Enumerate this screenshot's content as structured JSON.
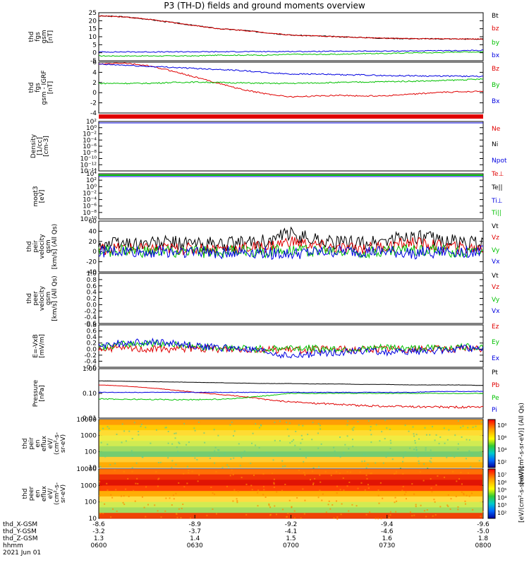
{
  "title": "P3 (TH-D) fields and ground moments overview",
  "colors": {
    "black": "#000000",
    "red": "#e00000",
    "green": "#00c000",
    "blue": "#0000e0"
  },
  "colorbar_labels": {
    "ion": "[eV/(cm²-s-sr-eV)] (All Qs)",
    "electron": "[eV/(cm²-s-sr-eV)]"
  },
  "chart_data": [
    {
      "type": "line",
      "ylabel": [
        "thd",
        "fgs",
        "gsm",
        "[nT]"
      ],
      "ylim": [
        -5,
        25
      ],
      "yticks": [
        "25",
        "20",
        "15",
        "10",
        "5",
        "0",
        "-5"
      ],
      "series": [
        {
          "name": "Bt",
          "color": "black",
          "values": [
            23,
            22.5,
            21,
            19,
            17,
            15,
            14,
            12.5,
            11,
            10.5,
            10,
            9.5,
            9,
            8.8,
            8.7,
            8.6,
            8.5
          ]
        },
        {
          "name": "bz",
          "color": "red",
          "values": [
            23,
            22.5,
            21,
            19,
            17,
            15,
            14,
            12.5,
            11,
            10.5,
            10,
            9.5,
            9,
            8.8,
            8.7,
            8.6,
            8.5
          ]
        },
        {
          "name": "by",
          "color": "green",
          "values": [
            -2,
            -2,
            -2,
            -2,
            -2,
            -1.5,
            -1.5,
            -1.5,
            -1,
            -1,
            -1,
            -0.5,
            -0.5,
            0,
            0,
            0.5,
            0.5
          ]
        },
        {
          "name": "bx",
          "color": "blue",
          "values": [
            0.5,
            0.5,
            0.5,
            0.5,
            0.6,
            0.6,
            0.7,
            0.7,
            0.8,
            0.8,
            0.9,
            1,
            1,
            1.1,
            1.2,
            1.3,
            1.5
          ]
        }
      ]
    },
    {
      "type": "line",
      "ylabel": [
        "thd",
        "fgs",
        "gsm - IGRF",
        "[nT]"
      ],
      "ylim": [
        -6,
        6
      ],
      "yticks": [
        "6",
        "4",
        "2",
        "0",
        "-2",
        "-4"
      ],
      "series": [
        {
          "name": "Bz",
          "color": "red",
          "values": [
            5.5,
            5.8,
            5.2,
            4,
            2.5,
            1,
            -0.5,
            -1.5,
            -2.2,
            -2,
            -1.8,
            -2,
            -1.9,
            -1.6,
            -1.2,
            -1,
            -0.8
          ]
        },
        {
          "name": "By",
          "color": "green",
          "values": [
            1,
            1,
            1,
            1.2,
            1.3,
            1.2,
            1.1,
            1,
            1,
            1.1,
            1.2,
            1.3,
            1.4,
            1.5,
            1.6,
            1.8,
            2
          ]
        },
        {
          "name": "Bx",
          "color": "blue",
          "values": [
            5.5,
            5.3,
            5,
            4.8,
            4.5,
            4.3,
            4,
            3.5,
            3.2,
            3.2,
            3,
            3,
            2.8,
            2.8,
            2.7,
            2.7,
            2.6
          ]
        }
      ]
    },
    {
      "type": "line",
      "ylabel": [
        "Density",
        "[1/cc]",
        "[cm-3]"
      ],
      "ylim": [
        -14,
        2
      ],
      "yticks": [
        "10²",
        "10⁰",
        "10⁻²",
        "10⁻⁴",
        "10⁻⁶",
        "10⁻⁸",
        "10⁻¹⁰",
        "10⁻¹²",
        "10⁻¹⁴"
      ],
      "series": [
        {
          "name": "Ne",
          "color": "red",
          "values": []
        },
        {
          "name": "Ni",
          "color": "black",
          "values": []
        },
        {
          "name": "Npot",
          "color": "blue",
          "values": []
        }
      ]
    },
    {
      "type": "line",
      "ylabel": [
        "moqt3",
        "[eV]"
      ],
      "ylim": [
        -10,
        4
      ],
      "yticks": [
        "10⁴",
        "10²",
        "10⁰",
        "10⁻²",
        "10⁻⁴",
        "10⁻⁶",
        "10⁻⁸",
        "10⁻¹⁰"
      ],
      "series": [
        {
          "name": "Te⊥",
          "color": "red",
          "values": []
        },
        {
          "name": "Te||",
          "color": "black",
          "values": []
        },
        {
          "name": "Ti⊥",
          "color": "blue",
          "values": []
        },
        {
          "name": "Ti||",
          "color": "green",
          "values": []
        }
      ]
    },
    {
      "type": "line",
      "ylabel": [
        "thd",
        "peir",
        "velocity",
        "gsm",
        "[km/s] (All Qs)"
      ],
      "ylim": [
        -40,
        60
      ],
      "yticks": [
        "60",
        "40",
        "20",
        "0",
        "-20",
        "-40"
      ],
      "series": [
        {
          "name": "Vt",
          "color": "black",
          "values": [
            15,
            17,
            16,
            18,
            15,
            14,
            16,
            20,
            35,
            25,
            17,
            16,
            22,
            30,
            25,
            18,
            16
          ]
        },
        {
          "name": "Vz",
          "color": "red",
          "values": [
            5,
            6,
            5,
            6,
            5,
            6,
            7,
            10,
            20,
            12,
            6,
            7,
            10,
            18,
            12,
            7,
            6
          ]
        },
        {
          "name": "Vy",
          "color": "green",
          "values": [
            0,
            2,
            -2,
            1,
            -1,
            0,
            2,
            0,
            5,
            2,
            0,
            -1,
            1,
            4,
            2,
            0,
            1
          ]
        },
        {
          "name": "Vx",
          "color": "blue",
          "values": [
            0,
            0,
            -1,
            0,
            0,
            -2,
            0,
            -3,
            -5,
            -2,
            0,
            0,
            -1,
            -3,
            -1,
            0,
            0
          ]
        }
      ]
    },
    {
      "type": "line",
      "ylabel": [
        "thd",
        "peer",
        "velocity",
        "gsm",
        "[km/s] (All Qs)"
      ],
      "ylim": [
        -0.6,
        1.0
      ],
      "yticks": [
        "1.0",
        "0.8",
        "0.6",
        "0.4",
        "0.2",
        "0.0",
        "-0.2",
        "-0.4",
        "-0.6"
      ],
      "series": [
        {
          "name": "Vt",
          "color": "black",
          "values": []
        },
        {
          "name": "Vz",
          "color": "red",
          "values": []
        },
        {
          "name": "Vy",
          "color": "green",
          "values": []
        },
        {
          "name": "Vx",
          "color": "blue",
          "values": []
        }
      ]
    },
    {
      "type": "line",
      "ylabel": [
        "E=-VxB",
        "[mV/m]"
      ],
      "ylim": [
        -0.6,
        0.8
      ],
      "yticks": [
        "0.8",
        "0.6",
        "0.4",
        "0.2",
        "0.0",
        "-0.2",
        "-0.4",
        "-0.6"
      ],
      "series": [
        {
          "name": "Ez",
          "color": "red",
          "values": [
            0,
            0.02,
            0.01,
            0,
            0.01,
            0,
            0,
            -0.02,
            -0.03,
            -0.02,
            0,
            0,
            0.01,
            0,
            0,
            0.01,
            0
          ]
        },
        {
          "name": "Ey",
          "color": "green",
          "values": [
            0.05,
            0.15,
            0.2,
            0.18,
            0.1,
            0.05,
            0.02,
            0,
            0.05,
            0.02,
            0,
            0,
            0.05,
            0.02,
            0.03,
            0.06,
            0.08
          ]
        },
        {
          "name": "Ex",
          "color": "blue",
          "values": [
            0.1,
            0.2,
            0.25,
            0.2,
            0.1,
            0.05,
            0,
            -0.1,
            -0.25,
            -0.15,
            -0.1,
            -0.05,
            -0.1,
            -0.08,
            -0.05,
            0,
            0.05
          ]
        }
      ]
    },
    {
      "type": "line",
      "scale": "log",
      "ylabel": [
        "Pressure",
        "[nPa]"
      ],
      "ylim": [
        0.01,
        1
      ],
      "yticks": [
        "1.00",
        "0.10",
        "0.01"
      ],
      "series": [
        {
          "name": "Pt",
          "color": "black",
          "values": [
            0.32,
            0.31,
            0.3,
            0.29,
            0.28,
            0.27,
            0.26,
            0.25,
            0.25,
            0.24,
            0.24,
            0.23,
            0.23,
            0.22,
            0.22,
            0.22,
            0.21
          ]
        },
        {
          "name": "Pb",
          "color": "red",
          "values": [
            0.22,
            0.2,
            0.17,
            0.14,
            0.11,
            0.09,
            0.075,
            0.055,
            0.045,
            0.04,
            0.036,
            0.032,
            0.03,
            0.029,
            0.028,
            0.028,
            0.027
          ]
        },
        {
          "name": "Pe",
          "color": "green",
          "values": [
            0.06,
            0.058,
            0.057,
            0.056,
            0.056,
            0.058,
            0.065,
            0.08,
            0.1,
            0.1,
            0.1,
            0.1,
            0.1,
            0.1,
            0.1,
            0.1,
            0.1
          ]
        },
        {
          "name": "Pi",
          "color": "blue",
          "values": [
            0.11,
            0.11,
            0.11,
            0.11,
            0.11,
            0.11,
            0.11,
            0.11,
            0.11,
            0.11,
            0.11,
            0.11,
            0.11,
            0.11,
            0.12,
            0.12,
            0.12
          ]
        }
      ]
    },
    {
      "type": "heatmap",
      "ylabel": [
        "thd",
        "peir",
        "en",
        "eflux",
        "eV/",
        "(cm²-s-",
        "sr-eV)"
      ],
      "ylim": [
        5,
        30000
      ],
      "yticks": [
        "10000",
        "1000",
        "100",
        "10"
      ],
      "colorbar_ticks": [
        "10⁸",
        "10⁶",
        "10⁴",
        "10²"
      ]
    },
    {
      "type": "heatmap",
      "ylabel": [
        "thd",
        "peer",
        "en",
        "eflux",
        "eV/",
        "(cm²-s-",
        "sr-eV)"
      ],
      "ylim": [
        5,
        30000
      ],
      "yticks": [
        "10000",
        "1000",
        "100",
        "10"
      ],
      "colorbar_ticks": [
        "10⁷",
        "10⁶",
        "10⁵",
        "10⁴",
        "10³",
        "10²"
      ]
    }
  ],
  "x_axis": {
    "row_labels": [
      "thd_X-GSM",
      "thd_Y-GSM",
      "thd_Z-GSM",
      "hhmm",
      "2021 Jun 01"
    ],
    "ticks": [
      {
        "x": "-8.6",
        "y": "-3.2",
        "z": "1.3",
        "t": "0600"
      },
      {
        "x": "-8.9",
        "y": "-3.7",
        "z": "1.4",
        "t": "0630"
      },
      {
        "x": "-9.2",
        "y": "-4.1",
        "z": "1.5",
        "t": "0700"
      },
      {
        "x": "-9.4",
        "y": "-4.6",
        "z": "1.6",
        "t": "0730"
      },
      {
        "x": "-9.6",
        "y": "-5.0",
        "z": "1.8",
        "t": "0800"
      }
    ]
  }
}
